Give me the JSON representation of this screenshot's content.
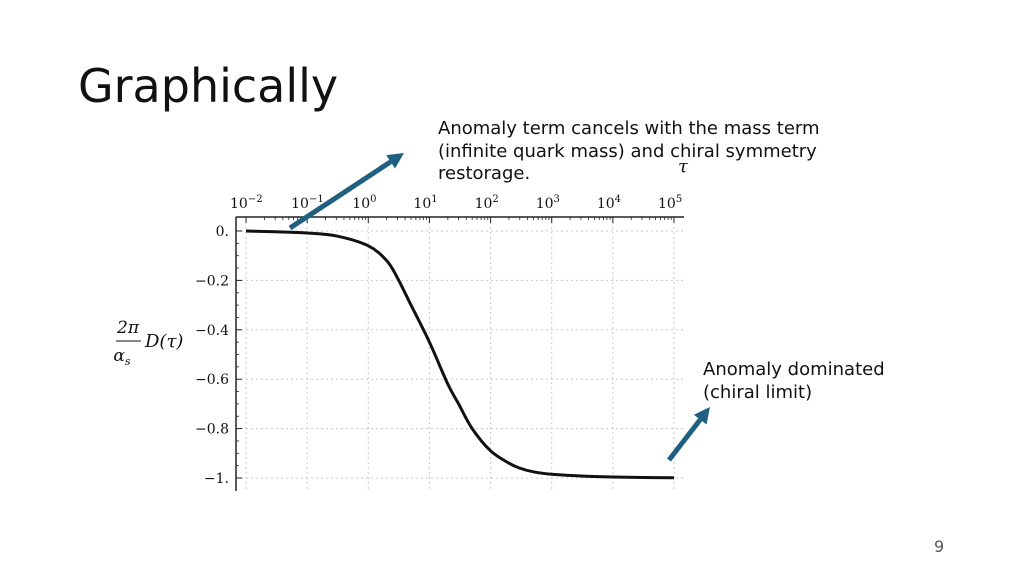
{
  "slide": {
    "title": "Graphically",
    "number": "9",
    "annotations": {
      "top": "Anomaly term cancels with the mass term (infinite quark mass) and chiral symmetry restorage.",
      "bottom_line1": "Anomaly dominated",
      "bottom_line2": "(chiral limit)"
    }
  },
  "colors": {
    "arrow": "#1f5f7f",
    "curve": "#111111",
    "grid": "#c8c8c8"
  },
  "chart_data": {
    "type": "line",
    "x_scale": "log",
    "x_ticks": [
      {
        "base": "10",
        "exp": "−2"
      },
      {
        "base": "10",
        "exp": "−1"
      },
      {
        "base": "10",
        "exp": "0"
      },
      {
        "base": "10",
        "exp": "1"
      },
      {
        "base": "10",
        "exp": "2"
      },
      {
        "base": "10",
        "exp": "3"
      },
      {
        "base": "10",
        "exp": "4"
      },
      {
        "base": "10",
        "exp": "5"
      }
    ],
    "xlabel": "τ",
    "ylabel": {
      "numerator": "2π",
      "denominator": "α",
      "subscript": "s",
      "function": "D(τ)"
    },
    "y_ticks": [
      "0.",
      "−0.2",
      "−0.4",
      "−0.6",
      "−0.8",
      "−1."
    ],
    "y_tick_values": [
      0,
      -0.2,
      -0.4,
      -0.6,
      -0.8,
      -1.0
    ],
    "xlim": [
      0.01,
      100000
    ],
    "ylim": [
      -1.02,
      0.02
    ],
    "grid": true,
    "series": [
      {
        "x": [
          0.01,
          0.03,
          0.1,
          0.3,
          1,
          2,
          3,
          5,
          10,
          20,
          30,
          50,
          100,
          200,
          300,
          500,
          1000,
          3000,
          10000,
          30000,
          100000
        ],
        "y": [
          0.0,
          -0.003,
          -0.008,
          -0.02,
          -0.06,
          -0.12,
          -0.19,
          -0.3,
          -0.45,
          -0.62,
          -0.7,
          -0.8,
          -0.89,
          -0.94,
          -0.96,
          -0.975,
          -0.985,
          -0.992,
          -0.996,
          -0.998,
          -0.999
        ]
      }
    ]
  }
}
